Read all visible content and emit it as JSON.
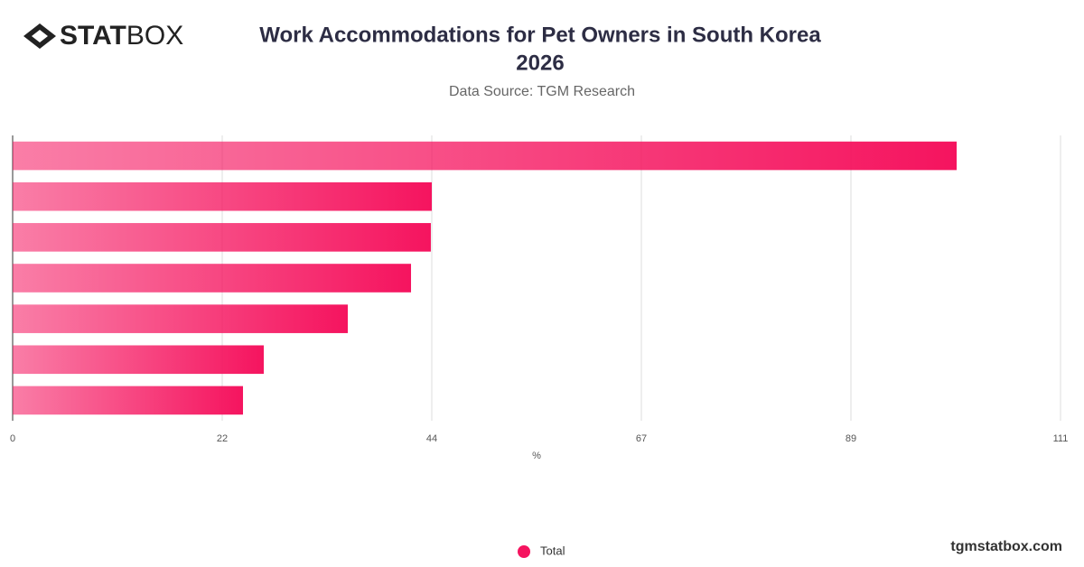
{
  "logo": {
    "bold": "STAT",
    "light": "BOX"
  },
  "footer": "tgmstatbox.com",
  "chart_data": {
    "type": "bar",
    "orientation": "horizontal",
    "title_lines": [
      "Work Accommodations for Pet Owners in South Korea",
      "2026"
    ],
    "subtitle": "Data Source: TGM Research",
    "x_label": "%",
    "categories": [
      null,
      null,
      null,
      null,
      null,
      null,
      null
    ],
    "series": [
      {
        "name": "Total",
        "color": "#f5145f",
        "values": [
          100,
          44.4,
          44.3,
          42.2,
          35.5,
          26.6,
          24.4
        ]
      }
    ],
    "xlim": [
      0,
      111
    ],
    "xticks": [
      0,
      {
        "value": 22.2,
        "label": "22"
      },
      {
        "value": 44.4,
        "label": "44"
      },
      {
        "value": 66.6,
        "label": "67"
      },
      {
        "value": 88.8,
        "label": "89"
      },
      111
    ],
    "grid": true,
    "legend": "bottom"
  }
}
